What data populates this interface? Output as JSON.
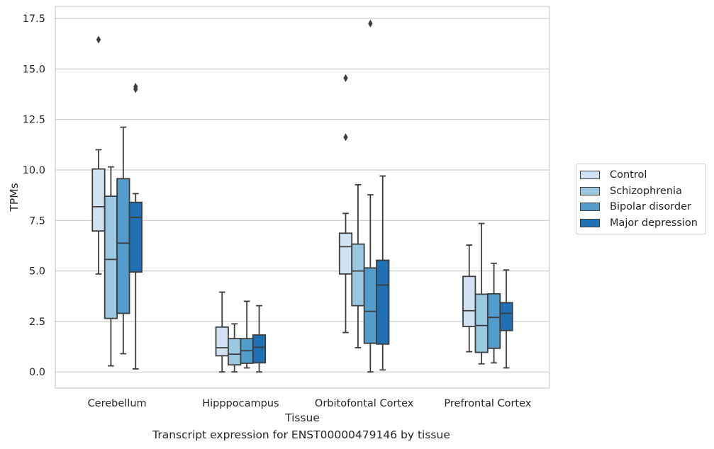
{
  "caption": "Transcript expression for ENST00000479146 by tissue",
  "chart_data": {
    "type": "box",
    "title": "",
    "xlabel": "Tissue",
    "ylabel": "TPMs",
    "ylim": [
      -0.8,
      18.1
    ],
    "yticks": [
      0.0,
      2.5,
      5.0,
      7.5,
      10.0,
      12.5,
      15.0,
      17.5
    ],
    "ytick_labels": [
      "0.0",
      "2.5",
      "5.0",
      "7.5",
      "10.0",
      "12.5",
      "15.0",
      "17.5"
    ],
    "grid": "horizontal",
    "legend_position": "right",
    "categories": [
      "Cerebellum",
      "Hipppocampus",
      "Orbitofontal Cortex",
      "Prefrontal Cortex"
    ],
    "series": [
      {
        "name": "Control",
        "color": "#d1e2f2",
        "boxes": [
          {
            "whislo": 4.85,
            "q1": 6.98,
            "med": 8.18,
            "q3": 10.05,
            "whishi": 11.0,
            "fliers": [
              16.45
            ]
          },
          {
            "whislo": 0.0,
            "q1": 0.8,
            "med": 1.2,
            "q3": 2.22,
            "whishi": 3.95,
            "fliers": []
          },
          {
            "whislo": 1.95,
            "q1": 4.85,
            "med": 6.2,
            "q3": 6.87,
            "whishi": 7.85,
            "fliers": [
              14.55,
              11.62
            ]
          },
          {
            "whislo": 1.0,
            "q1": 2.25,
            "med": 3.03,
            "q3": 4.73,
            "whishi": 6.28,
            "fliers": []
          }
        ]
      },
      {
        "name": "Schizophrenia",
        "color": "#9ac8e0",
        "boxes": [
          {
            "whislo": 0.3,
            "q1": 2.65,
            "med": 5.57,
            "q3": 8.7,
            "whishi": 10.15,
            "fliers": []
          },
          {
            "whislo": 0.0,
            "q1": 0.35,
            "med": 0.88,
            "q3": 1.65,
            "whishi": 2.38,
            "fliers": []
          },
          {
            "whislo": 1.2,
            "q1": 3.28,
            "med": 5.0,
            "q3": 6.33,
            "whishi": 9.27,
            "fliers": []
          },
          {
            "whislo": 0.4,
            "q1": 0.97,
            "med": 2.3,
            "q3": 3.85,
            "whishi": 7.35,
            "fliers": []
          }
        ]
      },
      {
        "name": "Bipolar disorder",
        "color": "#529dcc",
        "boxes": [
          {
            "whislo": 0.9,
            "q1": 2.9,
            "med": 6.38,
            "q3": 9.57,
            "whishi": 12.12,
            "fliers": []
          },
          {
            "whislo": 0.2,
            "q1": 0.43,
            "med": 1.05,
            "q3": 1.65,
            "whishi": 3.5,
            "fliers": []
          },
          {
            "whislo": 0.0,
            "q1": 1.42,
            "med": 3.0,
            "q3": 5.15,
            "whishi": 8.77,
            "fliers": [
              17.25
            ]
          },
          {
            "whislo": 0.45,
            "q1": 1.17,
            "med": 2.7,
            "q3": 3.87,
            "whishi": 5.38,
            "fliers": []
          }
        ]
      },
      {
        "name": "Major depression",
        "color": "#2070b4",
        "boxes": [
          {
            "whislo": 0.15,
            "q1": 4.95,
            "med": 7.65,
            "q3": 8.4,
            "whishi": 8.83,
            "fliers": [
              14.0,
              14.12
            ]
          },
          {
            "whislo": 0.0,
            "q1": 0.45,
            "med": 1.22,
            "q3": 1.83,
            "whishi": 3.28,
            "fliers": []
          },
          {
            "whislo": 0.1,
            "q1": 1.38,
            "med": 4.3,
            "q3": 5.53,
            "whishi": 9.7,
            "fliers": []
          },
          {
            "whislo": 0.2,
            "q1": 2.05,
            "med": 2.9,
            "q3": 3.43,
            "whishi": 5.05,
            "fliers": []
          }
        ]
      }
    ]
  }
}
